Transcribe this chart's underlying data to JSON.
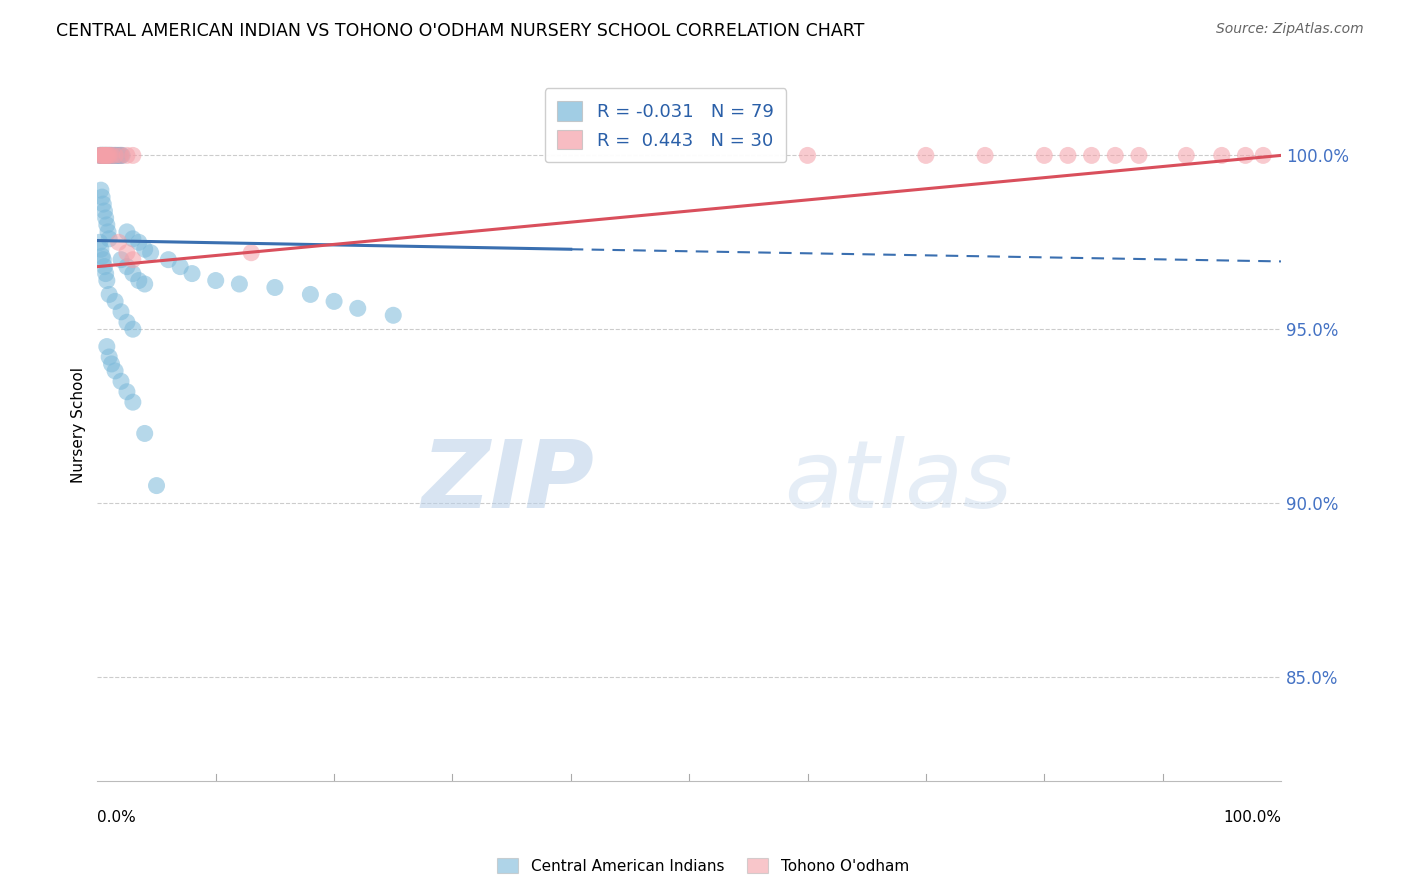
{
  "title": "CENTRAL AMERICAN INDIAN VS TOHONO O'ODHAM NURSERY SCHOOL CORRELATION CHART",
  "source": "Source: ZipAtlas.com",
  "ylabel": "Nursery School",
  "xlim": [
    0.0,
    1.0
  ],
  "ylim": [
    0.82,
    1.025
  ],
  "yticks": [
    0.85,
    0.9,
    0.95,
    1.0
  ],
  "ytick_labels": [
    "85.0%",
    "90.0%",
    "95.0%",
    "100.0%"
  ],
  "blue_R": "-0.031",
  "blue_N": "79",
  "pink_R": "0.443",
  "pink_N": "30",
  "blue_color": "#7ab8d9",
  "pink_color": "#f4a0a8",
  "blue_line_color": "#3a6fb0",
  "pink_line_color": "#d94f5c",
  "legend_label_blue": "Central American Indians",
  "legend_label_pink": "Tohono O'odham",
  "watermark_zip": "ZIP",
  "watermark_atlas": "atlas",
  "blue_scatter_x": [
    0.002,
    0.003,
    0.003,
    0.004,
    0.004,
    0.005,
    0.005,
    0.006,
    0.006,
    0.007,
    0.007,
    0.008,
    0.008,
    0.009,
    0.009,
    0.01,
    0.01,
    0.011,
    0.011,
    0.012,
    0.012,
    0.013,
    0.014,
    0.015,
    0.016,
    0.017,
    0.018,
    0.019,
    0.02,
    0.021,
    0.003,
    0.004,
    0.005,
    0.006,
    0.007,
    0.008,
    0.009,
    0.01,
    0.002,
    0.003,
    0.004,
    0.005,
    0.006,
    0.007,
    0.008,
    0.025,
    0.03,
    0.035,
    0.04,
    0.045,
    0.02,
    0.025,
    0.03,
    0.035,
    0.04,
    0.06,
    0.07,
    0.08,
    0.1,
    0.12,
    0.15,
    0.18,
    0.2,
    0.22,
    0.25,
    0.01,
    0.015,
    0.02,
    0.025,
    0.03,
    0.008,
    0.01,
    0.012,
    0.015,
    0.02,
    0.025,
    0.03,
    0.04,
    0.05
  ],
  "blue_scatter_y": [
    1.0,
    1.0,
    1.0,
    1.0,
    1.0,
    1.0,
    1.0,
    1.0,
    1.0,
    1.0,
    1.0,
    1.0,
    1.0,
    1.0,
    1.0,
    1.0,
    1.0,
    1.0,
    1.0,
    1.0,
    1.0,
    1.0,
    1.0,
    1.0,
    1.0,
    1.0,
    1.0,
    1.0,
    1.0,
    1.0,
    0.99,
    0.988,
    0.986,
    0.984,
    0.982,
    0.98,
    0.978,
    0.976,
    0.975,
    0.973,
    0.971,
    0.97,
    0.968,
    0.966,
    0.964,
    0.978,
    0.976,
    0.975,
    0.973,
    0.972,
    0.97,
    0.968,
    0.966,
    0.964,
    0.963,
    0.97,
    0.968,
    0.966,
    0.964,
    0.963,
    0.962,
    0.96,
    0.958,
    0.956,
    0.954,
    0.96,
    0.958,
    0.955,
    0.952,
    0.95,
    0.945,
    0.942,
    0.94,
    0.938,
    0.935,
    0.932,
    0.929,
    0.92,
    0.905
  ],
  "pink_scatter_x": [
    0.002,
    0.003,
    0.004,
    0.005,
    0.006,
    0.007,
    0.008,
    0.009,
    0.01,
    0.012,
    0.015,
    0.02,
    0.025,
    0.03,
    0.018,
    0.025,
    0.03,
    0.75,
    0.8,
    0.82,
    0.84,
    0.86,
    0.88,
    0.92,
    0.95,
    0.97,
    0.985,
    0.13,
    0.6,
    0.7
  ],
  "pink_scatter_y": [
    1.0,
    1.0,
    1.0,
    1.0,
    1.0,
    1.0,
    1.0,
    1.0,
    1.0,
    1.0,
    1.0,
    1.0,
    1.0,
    1.0,
    0.975,
    0.972,
    0.97,
    1.0,
    1.0,
    1.0,
    1.0,
    1.0,
    1.0,
    1.0,
    1.0,
    1.0,
    1.0,
    0.972,
    1.0,
    1.0
  ],
  "blue_line_x0": 0.0,
  "blue_line_y0": 0.9755,
  "blue_line_x1": 0.4,
  "blue_line_y1": 0.973,
  "blue_line_x1_dash": 0.4,
  "blue_line_y1_dash": 0.973,
  "blue_line_x2": 1.0,
  "blue_line_y2": 0.9695,
  "pink_line_x0": 0.0,
  "pink_line_y0": 0.968,
  "pink_line_x1": 1.0,
  "pink_line_y1": 1.0
}
